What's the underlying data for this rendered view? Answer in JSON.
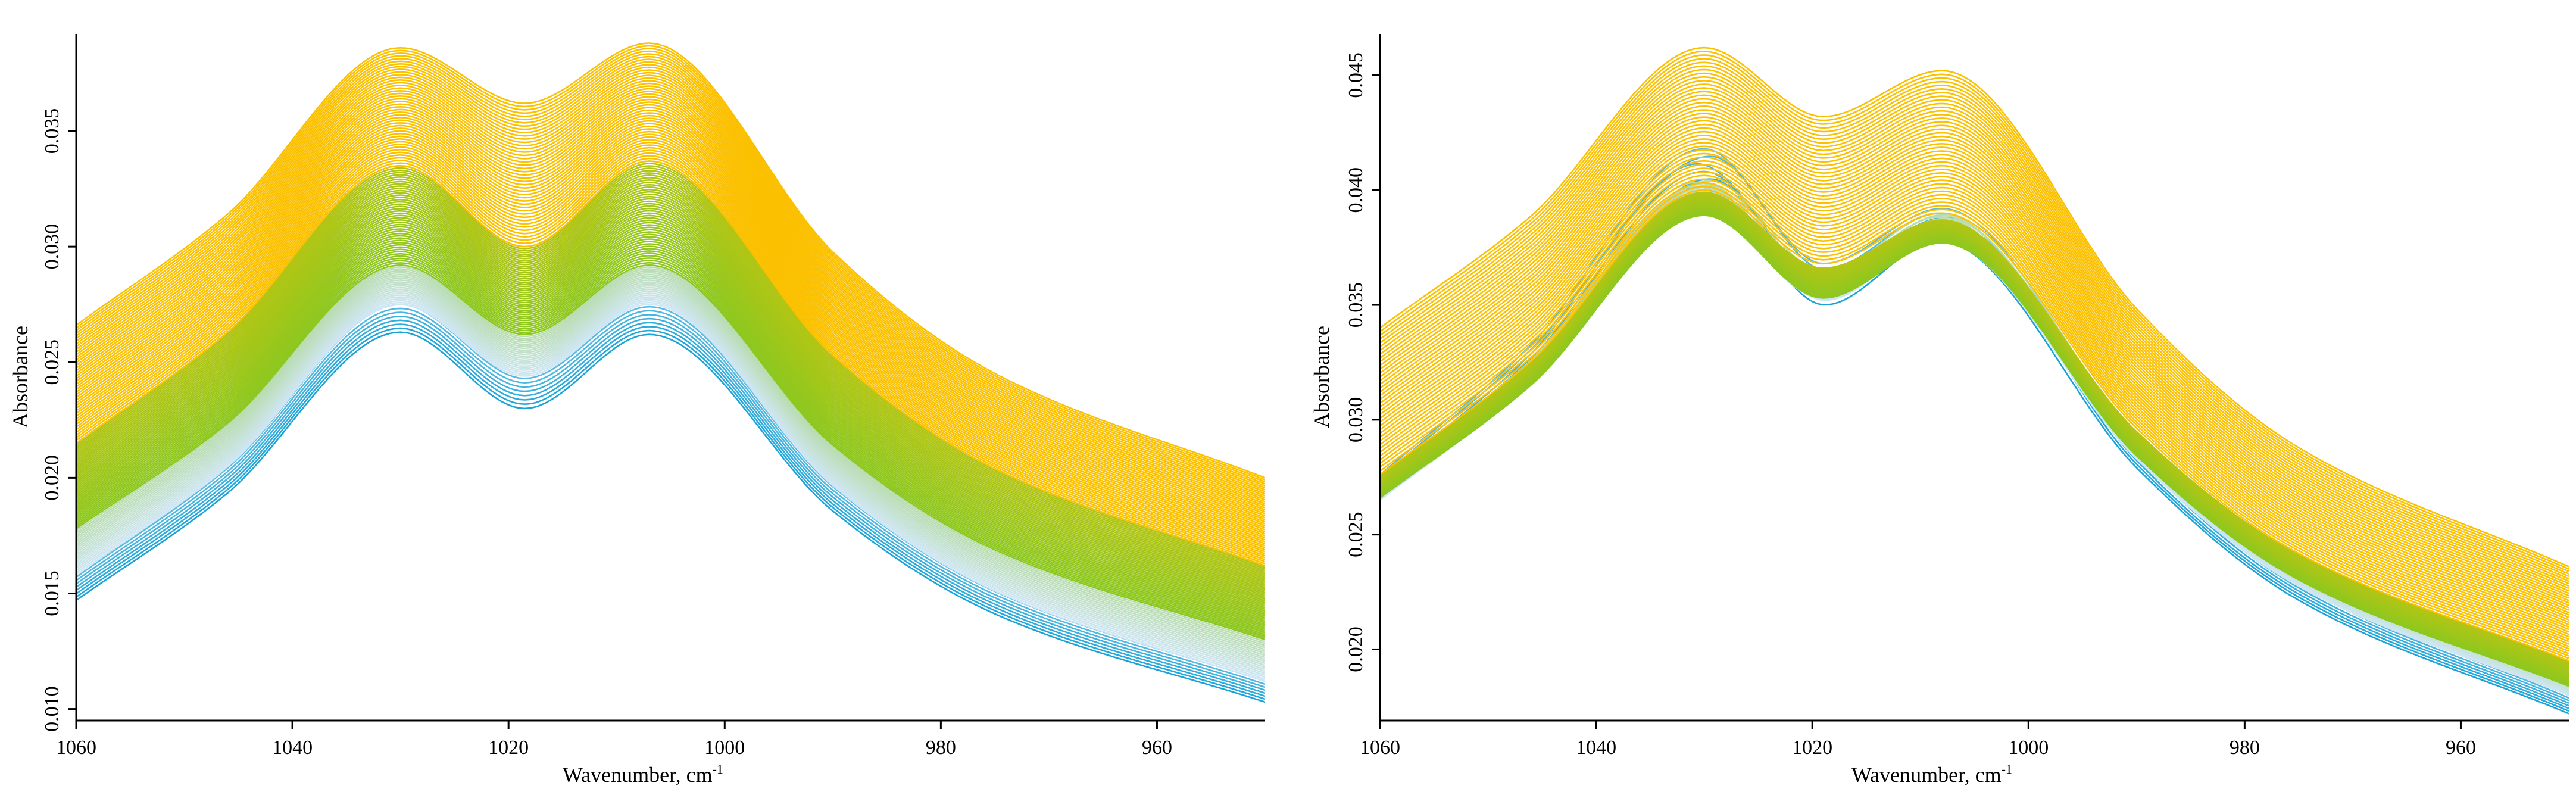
{
  "chart_data": [
    {
      "type": "line",
      "xlabel_main": "Wavenumber, cm",
      "xlabel_sup": "-1",
      "ylabel": "Absorbance",
      "xlim": [
        1060,
        950
      ],
      "ylim": [
        0.0095,
        0.0392
      ],
      "xticks": [
        1060,
        1040,
        1020,
        1000,
        980,
        960
      ],
      "xtick_labels": [
        "1060",
        "1040",
        "1020",
        "1000",
        "980",
        "960"
      ],
      "yticks": [
        0.01,
        0.015,
        0.02,
        0.025,
        0.03,
        0.035
      ],
      "ytick_labels": [
        "0.010",
        "0.015",
        "0.020",
        "0.025",
        "0.030",
        "0.035"
      ],
      "peaks_cm1": [
        1030,
        1007
      ],
      "palette": [
        "#1aa3d8",
        "#cfe6f5",
        "#8cc820",
        "#fbc000"
      ],
      "series_count": 120,
      "series_groups": [
        {
          "color": "#1aa3d8",
          "count": 8,
          "left_start": [
            0.0147,
            0.0157
          ],
          "peak1": [
            0.0263,
            0.0275
          ],
          "valley": [
            0.023,
            0.0243
          ],
          "peak2": [
            0.0262,
            0.0274
          ],
          "right_end": [
            0.0103,
            0.0112
          ]
        },
        {
          "color": "#cfe6f5",
          "count": 22,
          "left_start": [
            0.0158,
            0.0178
          ],
          "peak1": [
            0.0275,
            0.0292
          ],
          "valley": [
            0.0244,
            0.0262
          ],
          "peak2": [
            0.0275,
            0.0292
          ],
          "right_end": [
            0.0112,
            0.013
          ]
        },
        {
          "color": "#8cc820",
          "count": 45,
          "left_start": [
            0.0178,
            0.0215
          ],
          "peak1": [
            0.0292,
            0.0335
          ],
          "valley": [
            0.0262,
            0.03
          ],
          "peak2": [
            0.0292,
            0.0337
          ],
          "right_end": [
            0.013,
            0.0162
          ]
        },
        {
          "color": "#fbc000",
          "count": 45,
          "left_start": [
            0.0215,
            0.0266
          ],
          "peak1": [
            0.0335,
            0.0386
          ],
          "valley": [
            0.03,
            0.0362
          ],
          "peak2": [
            0.0337,
            0.0388
          ],
          "right_end": [
            0.0162,
            0.02
          ]
        }
      ]
    },
    {
      "type": "line",
      "xlabel_main": "Wavenumber, cm",
      "xlabel_sup": "-1",
      "ylabel": "Absorbance",
      "xlim": [
        1060,
        950
      ],
      "ylim": [
        0.0169,
        0.0468
      ],
      "xticks": [
        1060,
        1040,
        1020,
        1000,
        980,
        960
      ],
      "xtick_labels": [
        "1060",
        "1040",
        "1020",
        "1000",
        "980",
        "960"
      ],
      "yticks": [
        0.02,
        0.025,
        0.03,
        0.035,
        0.04,
        0.045
      ],
      "ytick_labels": [
        "0.020",
        "0.025",
        "0.030",
        "0.035",
        "0.040",
        "0.045"
      ],
      "peaks_cm1": [
        1030,
        1008
      ],
      "palette": [
        "#1aa3d8",
        "#cfe6f5",
        "#8cc820",
        "#fbc000"
      ],
      "series_count": 110,
      "series_groups": [
        {
          "color": "#1aa3d8",
          "count": 8,
          "left_start": [
            0.0268,
            0.0276
          ],
          "peak1": [
            0.0395,
            0.0418
          ],
          "valley": [
            0.035,
            0.0368
          ],
          "peak2": [
            0.0378,
            0.0392
          ],
          "right_end": [
            0.0172,
            0.018
          ]
        },
        {
          "color": "#cfe6f5",
          "count": 22,
          "left_start": [
            0.0265,
            0.0274
          ],
          "peak1": [
            0.0392,
            0.0404
          ],
          "valley": [
            0.0352,
            0.0364
          ],
          "peak2": [
            0.0378,
            0.039
          ],
          "right_end": [
            0.018,
            0.0188
          ]
        },
        {
          "color": "#8cc820",
          "count": 40,
          "left_start": [
            0.0266,
            0.0276
          ],
          "peak1": [
            0.0389,
            0.0399
          ],
          "valley": [
            0.0353,
            0.0366
          ],
          "peak2": [
            0.0377,
            0.0387
          ],
          "right_end": [
            0.0184,
            0.0195
          ]
        },
        {
          "color": "#fbc000",
          "count": 40,
          "left_start": [
            0.0276,
            0.034
          ],
          "peak1": [
            0.04,
            0.0462
          ],
          "valley": [
            0.0368,
            0.0432
          ],
          "peak2": [
            0.039,
            0.0452
          ],
          "right_end": [
            0.0195,
            0.0236
          ]
        }
      ]
    }
  ]
}
